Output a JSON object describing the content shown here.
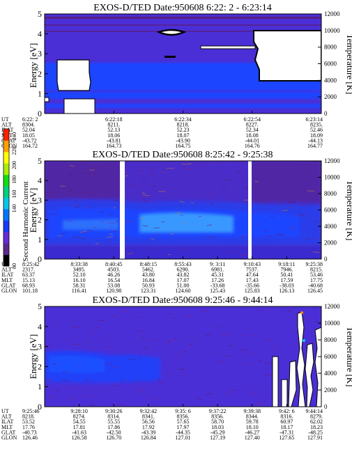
{
  "chart_data": [
    {
      "type": "heatmap",
      "title": "EXOS-D/TED   Date:950608   6:22: 2 - 6:23:14",
      "ylabel": "Energy [eV]",
      "y2label": "Temperature [K]",
      "ylim": [
        0,
        5
      ],
      "y2lim": [
        0,
        12000
      ],
      "yticks": [
        "0",
        "1",
        "2",
        "3",
        "4",
        "5"
      ],
      "y2ticks": [
        "0",
        "2000",
        "4000",
        "6000",
        "8000",
        "10000",
        "12000"
      ],
      "xtick_count": 5,
      "ephemeris": {
        "labels": [
          "UT",
          "ALT",
          "ILAT",
          "MLT",
          "GLAT",
          "GLON"
        ],
        "columns": [
          [
            "6:22: 2",
            "8304.",
            "52.04",
            "18.05",
            "-43.72",
            "164.72"
          ],
          [
            "6:22:18",
            "8211.",
            "52.13",
            "18.06",
            "-43.81",
            "164.73"
          ],
          [
            "6:22:34",
            "8218.",
            "52.23",
            "18.07",
            "-43.90",
            "164.75"
          ],
          [
            "6:22:54",
            "8227.",
            "52.34",
            "18.08",
            "-44.01",
            "164.76"
          ],
          [
            "6:23:14",
            "8235.",
            "52.46",
            "18.09",
            "-44.13",
            "164.77"
          ]
        ]
      }
    },
    {
      "type": "heatmap",
      "title": "EXOS-D/TED   Date:950608   8:25:42 - 9:25:38",
      "ylabel": "Energy [eV]",
      "y2label": "Temperature [K]",
      "ylim": [
        0,
        5
      ],
      "y2lim": [
        0,
        12000
      ],
      "yticks": [
        "0",
        "1",
        "2",
        "3",
        "4",
        "5"
      ],
      "y2ticks": [
        "0",
        "2000",
        "4000",
        "6000",
        "8000",
        "10000",
        "12000"
      ],
      "xtick_count": 9,
      "ephemeris": {
        "labels": [
          "UT",
          "ALT",
          "ILAT",
          "MLT",
          "GLAT",
          "GLON"
        ],
        "columns": [
          [
            "8:25:42",
            "2317.",
            "63.37",
            "15.13",
            "68.93",
            "101.18"
          ],
          [
            "8:33:38",
            "3495.",
            "52.10",
            "16.10",
            "58.31",
            "116.41"
          ],
          [
            "8:40:45",
            "4503.",
            "46.26",
            "16.54",
            "53.08",
            "120.98"
          ],
          [
            "8:48:15",
            "5462.",
            "43.80",
            "16.84",
            "50.93",
            "123.31"
          ],
          [
            "8:55:43",
            "6290.",
            "43.82",
            "17.07",
            "51.00",
            "124.60"
          ],
          [
            "9: 3:11",
            "6981.",
            "45.31",
            "17.26",
            "-33.68",
            "125.43"
          ],
          [
            "9:10:43",
            "7537.",
            "47.64",
            "17.43",
            "-35.66",
            "125.83"
          ],
          [
            "9:18:11",
            "7946.",
            "50.41",
            "17.59",
            "-38.03",
            "126.13"
          ],
          [
            "9:25:38",
            "8215.",
            "53.46",
            "17.75",
            "-40.68",
            "126.45"
          ]
        ]
      },
      "colorbar": {
        "label": "Second Harmonic Current",
        "ticks": [
          "80",
          "140",
          "160",
          "180",
          "200",
          "220",
          "240"
        ],
        "colors": [
          "#000000",
          "#5a2a8a",
          "#6a2ad8",
          "#1a3aff",
          "#0078ff",
          "#00c8e8",
          "#00d080",
          "#10e010",
          "#a8f000",
          "#ffff00",
          "#ffa000",
          "#ff2000"
        ]
      }
    },
    {
      "type": "heatmap",
      "title": "EXOS-D/TED   Date:950608   9:25:46 - 9:44:14",
      "ylabel": "Energy [eV]",
      "y2label": "Temperature [K]",
      "ylim": [
        0,
        5
      ],
      "y2lim": [
        0,
        12000
      ],
      "yticks": [
        "0",
        "1",
        "2",
        "3",
        "4",
        "5"
      ],
      "y2ticks": [
        "0",
        "2000",
        "4000",
        "6000",
        "8000",
        "10000",
        "12000"
      ],
      "xtick_count": 9,
      "ephemeris": {
        "labels": [
          "UT",
          "ALT",
          "ILAT",
          "MLT",
          "GLAT",
          "GLON"
        ],
        "columns": [
          [
            "9:25:46",
            "8218.",
            "53.52",
            "17.76",
            "-40.73",
            "126.46"
          ],
          [
            "9:28:10",
            "8274.",
            "54.55",
            "17.81",
            "-41.63",
            "126.58"
          ],
          [
            "9:30:26",
            "8314.",
            "55.55",
            "17.86",
            "-42.50",
            "126.70"
          ],
          [
            "9:32:42",
            "8341.",
            "56.56",
            "17.92",
            "-43.39",
            "126.84"
          ],
          [
            "9:35: 6",
            "8356.",
            "57.65",
            "17.97",
            "-44.35",
            "127.01"
          ],
          [
            "9:37:22",
            "8356.",
            "58.70",
            "18.03",
            "-45.29",
            "127.19"
          ],
          [
            "9:39:38",
            "8344.",
            "59.78",
            "18.10",
            "-46.27",
            "127.40"
          ],
          [
            "9:42: 6",
            "8316.",
            "60.97",
            "18.17",
            "-47.31",
            "127.65"
          ],
          [
            "9:44:14",
            "8279.",
            "62.02",
            "18.23",
            "-48.25",
            "127.91"
          ]
        ]
      }
    }
  ],
  "colors": {
    "background_level": "#4b2fd6",
    "band_level": "#1f45ff",
    "core_level": "#3da7ff",
    "dark_level": "#5c1a70",
    "gap": "#ffffff"
  }
}
